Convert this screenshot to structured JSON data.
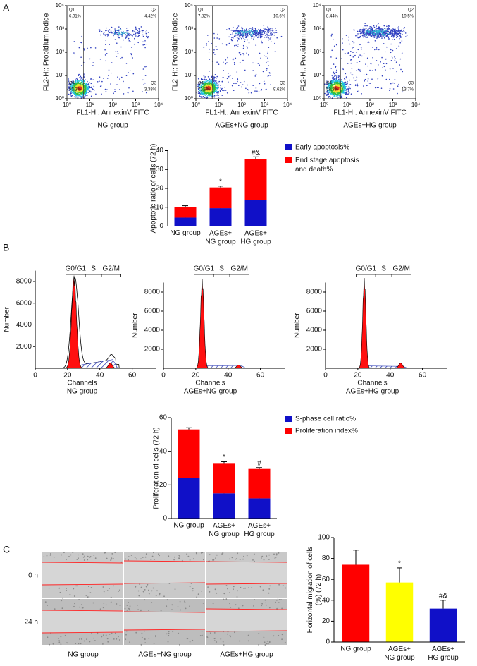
{
  "panel_labels": [
    "A",
    "B",
    "C"
  ],
  "flow_plots": {
    "y_label": "FL2-H:: Propidium iodide",
    "x_label": "FL1-H:: AnnexinV FITC",
    "log": true,
    "lim": [
      1,
      10000
    ],
    "ticks": [
      {
        "value": 1,
        "label": "10⁰"
      },
      {
        "value": 10,
        "label": "10¹"
      },
      {
        "value": 100,
        "label": "10²"
      },
      {
        "value": 1000,
        "label": "10³"
      },
      {
        "value": 10000,
        "label": "10⁴"
      }
    ],
    "plots": [
      {
        "caption": "NG group",
        "quadrants": [
          {
            "name": "Q1",
            "percent": "6.91%"
          },
          {
            "name": "Q2",
            "percent": "4.42%"
          },
          {
            "name": "Q3",
            "percent": "3.38%"
          },
          {
            "name": "Q4",
            "percent": "85.3%"
          }
        ]
      },
      {
        "caption": "AGEs+NG group",
        "quadrants": [
          {
            "name": "Q1",
            "percent": "7.82%"
          },
          {
            "name": "Q2",
            "percent": "10.6%"
          },
          {
            "name": "Q3",
            "percent": "9.62%"
          },
          {
            "name": "Q4",
            "percent": "71.8%"
          }
        ]
      },
      {
        "caption": "AGEs+HG group",
        "quadrants": [
          {
            "name": "Q1",
            "percent": "8.44%"
          },
          {
            "name": "Q2",
            "percent": "19.5%"
          },
          {
            "name": "Q3",
            "percent": "13.7%"
          },
          {
            "name": "Q4",
            "percent": "58.3%"
          }
        ]
      }
    ]
  },
  "cell_cycle": {
    "x_label": "Channels",
    "y_label": "Number",
    "phases": [
      "G0/G1",
      "S",
      "G2/M"
    ],
    "xlim": [
      0,
      75
    ],
    "xticks": [
      0,
      20,
      40,
      60
    ],
    "ylim": [
      0,
      9000
    ],
    "yticks": [
      2000,
      4000,
      6000,
      8000
    ],
    "plots": [
      {
        "caption": "NG group"
      },
      {
        "caption": "AGEs+NG group"
      },
      {
        "caption": "AGEs+HG group"
      }
    ]
  },
  "wound_assay": {
    "row_labels": [
      "0 h",
      "24 h"
    ],
    "captions": [
      "NG group",
      "AGEs+NG group",
      "AGEs+HG group"
    ]
  },
  "chart_data": [
    {
      "type": "bar",
      "stacked": true,
      "ylabel": "Apoptotic ratio of cells (72 h)",
      "categories": [
        "NG group",
        "AGEs+\nNG group",
        "AGEs+\nHG group"
      ],
      "ylim": [
        0,
        40
      ],
      "yticks": [
        0,
        10,
        20,
        30,
        40
      ],
      "series": [
        {
          "name": "Early apoptosis%",
          "color": "#1010c8",
          "values": [
            4.5,
            9.5,
            14
          ],
          "errors": [
            0.5,
            0.5,
            0.7
          ],
          "markers": [
            null,
            "*",
            "#&"
          ]
        },
        {
          "name": "End stage apoptosis\nand death%",
          "color": "#ff0000",
          "values": [
            5.5,
            11,
            21.5
          ],
          "errors": [
            0.8,
            0.7,
            1.2
          ],
          "markers": [
            null,
            "*",
            "#&"
          ]
        }
      ]
    },
    {
      "type": "bar",
      "stacked": true,
      "ylabel": "Proliferation of cells (72 h)",
      "categories": [
        "NG group",
        "AGEs+\nNG group",
        "AGEs+\nHG group"
      ],
      "ylim": [
        0,
        60
      ],
      "yticks": [
        0,
        20,
        40,
        60
      ],
      "series": [
        {
          "name": "S-phase cell ratio%",
          "color": "#1010c8",
          "values": [
            24,
            15,
            12
          ],
          "errors": [
            0.8,
            0.6,
            0.6
          ],
          "markers": [
            null,
            "*",
            "#"
          ]
        },
        {
          "name": "Proliferation index%",
          "color": "#ff0000",
          "values": [
            29,
            18,
            17.5
          ],
          "errors": [
            1,
            0.8,
            0.8
          ],
          "markers": [
            null,
            "*",
            "#"
          ]
        }
      ]
    },
    {
      "type": "bar",
      "stacked": false,
      "ylabel": "Horizontal migration of cells\n(%) (72 h)",
      "categories": [
        "NG group",
        "AGEs+\nNG group",
        "AGEs+\nHG group"
      ],
      "ylim": [
        0,
        100
      ],
      "yticks": [
        0,
        20,
        40,
        60,
        80,
        100
      ],
      "series": [
        {
          "colors": [
            "#ff0000",
            "#ffff00",
            "#1010c8"
          ],
          "values": [
            74,
            57,
            32
          ],
          "errors": [
            14,
            14,
            8
          ],
          "markers": [
            null,
            "*",
            "#&"
          ]
        }
      ]
    }
  ]
}
